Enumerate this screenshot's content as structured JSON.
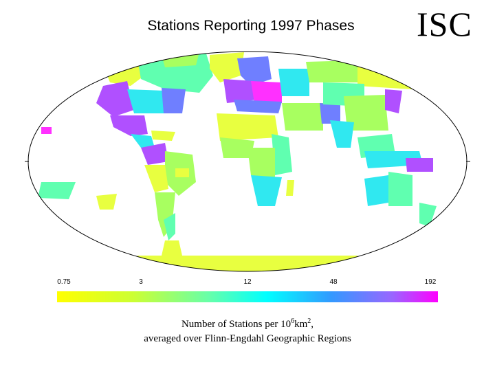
{
  "title": "Stations Reporting 1997 Phases",
  "logo": "ISC",
  "legend": {
    "ticks": [
      "0.75",
      "3",
      "12",
      "48",
      "192"
    ],
    "colors": [
      "#ffff00",
      "#ccff33",
      "#66ffaa",
      "#00ffff",
      "#3399ff",
      "#9966ff",
      "#ff00ff"
    ]
  },
  "caption": {
    "line1_pre": "Number of Stations per 10",
    "line1_exp1": "6",
    "line1_mid": "km",
    "line1_exp2": "2",
    "line1_post": ",",
    "line2": "averaged over Flinn-Engdahl Geographic Regions"
  },
  "map": {
    "projection": "Mollweide (world, Atlantic-centred)",
    "colors": {
      "low": "#e8ff40",
      "lowmid": "#a8ff60",
      "mid": "#60ffb0",
      "midhigh": "#30e8f0",
      "high": "#6f7fff",
      "vhigh": "#b050ff",
      "max": "#ff30ff",
      "ocean": "#ffffff",
      "coast": "#000000"
    }
  }
}
